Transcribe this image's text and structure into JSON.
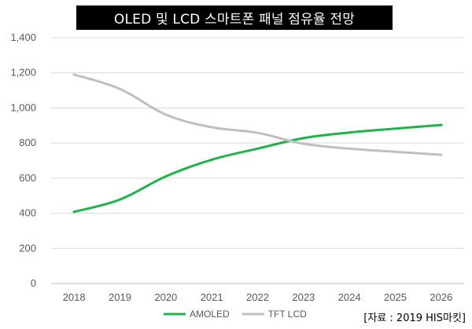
{
  "chart_data": {
    "type": "line",
    "title": "OLED 및 LCD 스마트폰 패널 점유율 전망",
    "xlabel": "",
    "ylabel": "",
    "categories": [
      "2018",
      "2019",
      "2020",
      "2021",
      "2022",
      "2023",
      "2024",
      "2025",
      "2026"
    ],
    "ylim": [
      0,
      1400
    ],
    "yticks": [
      0,
      200,
      400,
      600,
      800,
      1000,
      1200,
      1400
    ],
    "ytick_labels": [
      "0",
      "200",
      "400",
      "600",
      "800",
      "1,000",
      "1,200",
      "1,400"
    ],
    "grid": "horizontal",
    "legend": "bottom",
    "series": [
      {
        "name": "AMOLED",
        "color": "#22B14C",
        "values": [
          408,
          478,
          610,
          705,
          768,
          828,
          860,
          882,
          903
        ]
      },
      {
        "name": "TFT LCD",
        "color": "#BFBFBF",
        "values": [
          1190,
          1108,
          962,
          890,
          858,
          796,
          768,
          750,
          733
        ]
      }
    ]
  },
  "source_note": "[자료 : 2019 HIS마킷]"
}
